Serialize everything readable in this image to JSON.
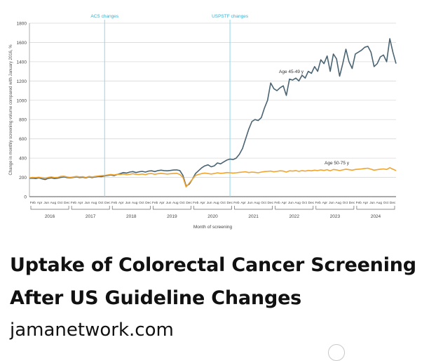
{
  "headline": {
    "line1": "Uptake of Colorectal Cancer Screening",
    "line2": "After US Guideline Changes"
  },
  "source": "jamanetwork.com",
  "colors": {
    "series_45_49": "#4a6473",
    "series_50_75": "#f0a531",
    "annotation_line": "#8fd6ea",
    "annotation_text": "#3aaed0"
  },
  "chart_data": {
    "type": "line",
    "ylabel": "Change in monthly screening volume compared with January 2016, %",
    "xlabel": "Month of screening",
    "ylim": [
      0,
      1800
    ],
    "yticks": [
      0,
      200,
      400,
      600,
      800,
      1000,
      1200,
      1400,
      1600,
      1800
    ],
    "month_labels": [
      "Feb",
      "Apr",
      "Jun",
      "Aug",
      "Oct",
      "Dec"
    ],
    "years": [
      "2016",
      "2017",
      "2018",
      "2019",
      "2020",
      "2021",
      "2022",
      "2023",
      "2024"
    ],
    "annotations": [
      {
        "label": "ACS changes",
        "x": 24
      },
      {
        "label": "USPSTF changes",
        "x": 64
      }
    ],
    "series": [
      {
        "name": "Age 45-49 y",
        "label": "Age 45-49 y",
        "values": [
          190,
          192,
          188,
          195,
          185,
          178,
          190,
          195,
          188,
          192,
          200,
          205,
          198,
          195,
          200,
          205,
          198,
          202,
          195,
          205,
          198,
          205,
          210,
          208,
          215,
          220,
          225,
          218,
          230,
          240,
          250,
          245,
          255,
          260,
          250,
          258,
          262,
          255,
          265,
          268,
          260,
          270,
          275,
          270,
          268,
          272,
          276,
          278,
          270,
          220,
          110,
          130,
          180,
          240,
          270,
          300,
          320,
          330,
          310,
          320,
          350,
          340,
          360,
          380,
          390,
          385,
          400,
          440,
          500,
          600,
          700,
          780,
          800,
          790,
          820,
          920,
          1000,
          1180,
          1120,
          1100,
          1130,
          1150,
          1050,
          1220,
          1210,
          1230,
          1200,
          1260,
          1230,
          1300,
          1280,
          1350,
          1300,
          1420,
          1380,
          1460,
          1300,
          1480,
          1430,
          1250,
          1380,
          1530,
          1400,
          1330,
          1480,
          1500,
          1520,
          1550,
          1560,
          1500,
          1350,
          1380,
          1450,
          1470,
          1400,
          1640,
          1500,
          1380
        ]
      },
      {
        "name": "Age 50-75 y",
        "label": "Age 50-75 y",
        "values": [
          195,
          200,
          198,
          202,
          195,
          190,
          200,
          205,
          198,
          200,
          210,
          212,
          205,
          200,
          205,
          210,
          205,
          208,
          200,
          210,
          205,
          210,
          215,
          218,
          220,
          225,
          230,
          225,
          232,
          230,
          235,
          228,
          232,
          238,
          232,
          230,
          235,
          228,
          238,
          240,
          232,
          238,
          242,
          238,
          235,
          238,
          240,
          242,
          230,
          200,
          100,
          140,
          180,
          220,
          230,
          240,
          245,
          240,
          235,
          240,
          248,
          242,
          245,
          250,
          248,
          245,
          248,
          252,
          255,
          258,
          250,
          255,
          252,
          248,
          255,
          260,
          262,
          265,
          258,
          262,
          268,
          265,
          255,
          268,
          265,
          270,
          262,
          270,
          265,
          272,
          268,
          275,
          270,
          278,
          272,
          280,
          268,
          282,
          278,
          270,
          278,
          285,
          280,
          275,
          282,
          285,
          288,
          292,
          295,
          285,
          275,
          280,
          285,
          288,
          282,
          300,
          285,
          270
        ]
      }
    ]
  }
}
